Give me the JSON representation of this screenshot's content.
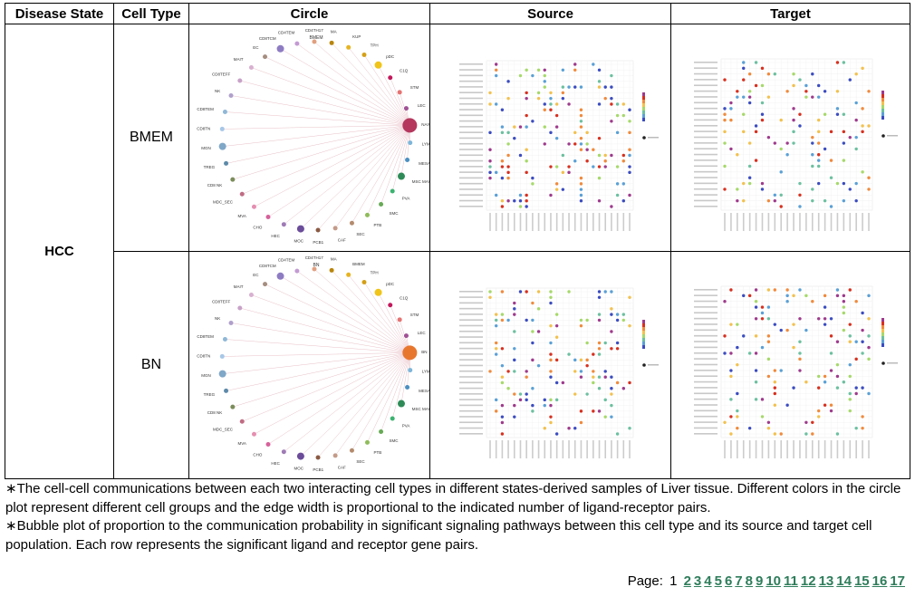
{
  "table": {
    "headers": [
      "Disease State",
      "Cell Type",
      "Circle",
      "Source",
      "Target"
    ],
    "disease_state": "HCC",
    "rows": [
      {
        "cell_type": "BMEM",
        "circle_top_label": "BMEM",
        "circle_highlight": "NAIVE",
        "circle_highlight_color": "#b5375e",
        "circle_labels": [
          "KUP",
          "TPH",
          "pDC",
          "C1Q",
          "STM",
          "LEC",
          "NAIVE",
          "LYMAMD",
          "MESA",
          "MSC MAY",
          "PVA",
          "SMC",
          "PTB",
          "SEC",
          "CAF",
          "PCB1",
          "MOC",
          "HEC",
          "CHO",
          "MVA",
          "MDC_SEC",
          "CD8 NK",
          "TREG",
          "MGN",
          "CD8TN",
          "CD8TEM",
          "NK",
          "CD8TEFF",
          "MAIT",
          "EC",
          "CD8TCM",
          "CD4TEM",
          "CD4TH17",
          "MA"
        ],
        "source_alt": "Bubble plot of BMEM as source",
        "target_alt": "Bubble plot of BMEM as target"
      },
      {
        "cell_type": "BN",
        "circle_top_label": "BN",
        "circle_highlight": "BN",
        "circle_highlight_color": "#e8772e",
        "circle_labels": [
          "BMEM",
          "TPH",
          "pDC",
          "C1Q",
          "STM",
          "LEC",
          "BN",
          "LYMAMD",
          "MESA",
          "MSC MAY",
          "PVA",
          "SMC",
          "PTB",
          "SEC",
          "CAF",
          "PCB1",
          "MOC",
          "HEC",
          "CHO",
          "MVA",
          "MDC_SEC",
          "CD8 NK",
          "TREG",
          "MGN",
          "CD8TN",
          "CD8TEM",
          "NK",
          "CD8TEFF",
          "MAIT",
          "EC",
          "CD8TCM",
          "CD4TEM",
          "CD4TH17",
          "MA"
        ],
        "source_alt": "Bubble plot of BN as source",
        "target_alt": "Bubble plot of BN as target"
      }
    ]
  },
  "notes": [
    "∗The cell-cell communications between each two interacting cell types in different states-derived samples of Liver tissue. Different colors in the circle plot represent different cell groups and the edge width is proportional to the indicated number of ligand-receptor pairs.",
    "∗Bubble plot of proportion to the communication probability in significant signaling pathways between this cell type and its source and target cell population. Each row represents the significant ligand and receptor gene pairs."
  ],
  "pagination": {
    "label": "Page:",
    "current": "1",
    "pages": [
      "2",
      "3",
      "4",
      "5",
      "6",
      "7",
      "8",
      "9",
      "10",
      "11",
      "12",
      "13",
      "14",
      "15",
      "16",
      "17"
    ]
  },
  "palette": [
    "#e6b422",
    "#d4a017",
    "#f0c419",
    "#c2185b",
    "#e57373",
    "#a05195",
    "#6a5acd",
    "#7eb6d9",
    "#4a90c2",
    "#2e8b57",
    "#3cb371",
    "#66aa55",
    "#8fbc5a",
    "#b38b6d",
    "#c49b89",
    "#8a5a44",
    "#6b4c9a",
    "#9e7bb5",
    "#d6619b",
    "#e58fb0",
    "#c06c84",
    "#7b8c5a",
    "#5d8aa8",
    "#7fa7c7",
    "#a7c7e7",
    "#8fb8d8",
    "#b0a0cc",
    "#c8a2c8",
    "#d8b0d0",
    "#a58d7f",
    "#8e7cc3",
    "#c39bd3",
    "#e0a080",
    "#b8860b"
  ]
}
